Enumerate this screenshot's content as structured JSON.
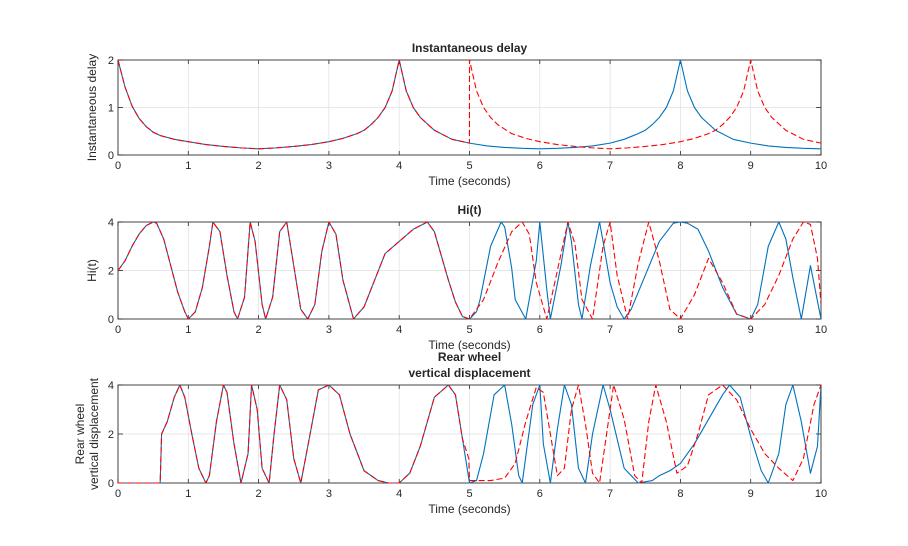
{
  "colors": {
    "blue": "#0072bd",
    "red": "#ff0000",
    "axes": "#262626",
    "grid": "#dfdfdf"
  },
  "chart_data": [
    {
      "type": "line",
      "title": "Instantaneous delay",
      "title_lines": [
        "Instantaneous delay"
      ],
      "xlabel": "Time (seconds)",
      "ylabel": "Instantaneous delay",
      "ylabel_lines": [
        "Instantaneous delay"
      ],
      "xlim": [
        0,
        10
      ],
      "ylim": [
        0,
        2
      ],
      "xticks": [
        "0",
        "1",
        "2",
        "3",
        "4",
        "5",
        "6",
        "7",
        "8",
        "9",
        "10"
      ],
      "yticks": [
        "0",
        "1",
        "2"
      ],
      "grid": true,
      "series": [
        {
          "style": "solid",
          "color": "blue",
          "x": [
            0,
            0.1,
            0.2,
            0.3,
            0.4,
            0.5,
            0.6,
            0.8,
            1,
            1.25,
            1.5,
            1.75,
            2,
            2.25,
            2.5,
            2.75,
            3,
            3.2,
            3.4,
            3.5,
            3.6,
            3.7,
            3.8,
            3.9,
            4,
            4.1,
            4.2,
            4.3,
            4.5,
            4.75,
            5,
            5.25,
            5.5,
            5.75,
            6,
            6.25,
            6.5,
            6.75,
            7,
            7.2,
            7.4,
            7.5,
            7.6,
            7.7,
            7.8,
            7.9,
            8,
            8.1,
            8.2,
            8.3,
            8.5,
            8.75,
            9,
            9.25,
            9.5,
            9.75,
            10
          ],
          "y": [
            2,
            1.43,
            1.03,
            0.77,
            0.6,
            0.48,
            0.41,
            0.33,
            0.28,
            0.22,
            0.18,
            0.15,
            0.13,
            0.15,
            0.18,
            0.22,
            0.28,
            0.35,
            0.45,
            0.52,
            0.64,
            0.79,
            1.0,
            1.35,
            2,
            1.35,
            1.0,
            0.79,
            0.52,
            0.33,
            0.25,
            0.19,
            0.16,
            0.14,
            0.13,
            0.14,
            0.16,
            0.19,
            0.25,
            0.33,
            0.45,
            0.52,
            0.64,
            0.79,
            1.0,
            1.35,
            2,
            1.35,
            1.0,
            0.79,
            0.52,
            0.33,
            0.25,
            0.19,
            0.16,
            0.14,
            0.13
          ]
        },
        {
          "style": "dashed",
          "color": "red",
          "x": [
            0,
            0.1,
            0.2,
            0.3,
            0.4,
            0.5,
            0.6,
            0.8,
            1,
            1.25,
            1.5,
            1.75,
            2,
            2.25,
            2.5,
            2.75,
            3,
            3.2,
            3.4,
            3.5,
            3.6,
            3.7,
            3.8,
            3.9,
            4,
            4.1,
            4.2,
            4.3,
            4.5,
            4.75,
            4.999,
            5,
            5.1,
            5.2,
            5.3,
            5.4,
            5.6,
            5.8,
            6,
            6.25,
            6.5,
            6.75,
            7,
            7.25,
            7.5,
            7.75,
            8,
            8.2,
            8.4,
            8.5,
            8.6,
            8.7,
            8.8,
            8.9,
            9,
            9.1,
            9.2,
            9.3,
            9.5,
            9.75,
            10
          ],
          "y": [
            2,
            1.43,
            1.03,
            0.77,
            0.6,
            0.48,
            0.41,
            0.33,
            0.28,
            0.22,
            0.18,
            0.15,
            0.13,
            0.15,
            0.18,
            0.22,
            0.28,
            0.35,
            0.45,
            0.52,
            0.64,
            0.79,
            1.0,
            1.35,
            2,
            1.35,
            1.0,
            0.79,
            0.52,
            0.33,
            0.25,
            2,
            1.35,
            1.0,
            0.79,
            0.64,
            0.45,
            0.35,
            0.28,
            0.22,
            0.18,
            0.15,
            0.13,
            0.15,
            0.18,
            0.22,
            0.28,
            0.35,
            0.45,
            0.52,
            0.64,
            0.79,
            1.0,
            1.35,
            2,
            1.35,
            1.0,
            0.79,
            0.52,
            0.33,
            0.25
          ]
        }
      ]
    },
    {
      "type": "line",
      "title": "Hi(t)",
      "title_lines": [
        "Hi(t)"
      ],
      "xlabel": "Time (seconds)",
      "ylabel": "Hi(t)",
      "ylabel_lines": [
        "Hi(t)"
      ],
      "xlim": [
        0,
        10
      ],
      "ylim": [
        0,
        4
      ],
      "xticks": [
        "0",
        "1",
        "2",
        "3",
        "4",
        "5",
        "6",
        "7",
        "8",
        "9",
        "10"
      ],
      "yticks": [
        "0",
        "2",
        "4"
      ],
      "grid": true,
      "series": [
        {
          "style": "solid",
          "color": "blue",
          "x": [
            0,
            0.1,
            0.2,
            0.3,
            0.4,
            0.5,
            0.55,
            0.65,
            0.75,
            0.85,
            0.95,
            1.0,
            1.1,
            1.2,
            1.3,
            1.35,
            1.45,
            1.55,
            1.65,
            1.7,
            1.8,
            1.88,
            1.95,
            2.05,
            2.1,
            2.2,
            2.3,
            2.4,
            2.5,
            2.6,
            2.7,
            2.8,
            2.9,
            3.0,
            3.1,
            3.2,
            3.35,
            3.5,
            3.65,
            3.8,
            4.0,
            4.2,
            4.4,
            4.5,
            4.6,
            4.7,
            4.8,
            4.9,
            5.0,
            5.1,
            5.15,
            5.3,
            5.45,
            5.5,
            5.6,
            5.65,
            5.8,
            5.95,
            6.0,
            6.1,
            6.15,
            6.3,
            6.4,
            6.45,
            6.55,
            6.6,
            6.72,
            6.85,
            6.9,
            7.0,
            7.1,
            7.2,
            7.3,
            7.5,
            7.7,
            7.9,
            8.0,
            8.1,
            8.25,
            8.4,
            8.6,
            8.8,
            9.0,
            9.1,
            9.25,
            9.4,
            9.5,
            9.6,
            9.72,
            9.85,
            10
          ],
          "y": [
            2,
            2.4,
            3,
            3.5,
            3.85,
            4,
            3.95,
            3.3,
            2.2,
            1.1,
            0.3,
            0,
            0.3,
            1.3,
            3.0,
            4,
            3.6,
            1.8,
            0.3,
            0,
            0.9,
            4,
            3.2,
            0.6,
            0,
            0.9,
            3.6,
            4,
            2.2,
            0.4,
            0,
            0.6,
            2.8,
            4,
            3.5,
            1.6,
            0,
            0.5,
            1.6,
            2.7,
            3.2,
            3.7,
            4,
            3.6,
            2.6,
            1.6,
            0.7,
            0.1,
            0,
            0.3,
            0.8,
            3.0,
            4,
            3.8,
            2.1,
            0.8,
            0,
            2.4,
            4,
            1.2,
            0,
            2.2,
            4,
            3.2,
            0.6,
            0,
            2.2,
            4,
            3.2,
            1.5,
            0.5,
            0,
            0.4,
            1.8,
            3.2,
            3.95,
            4,
            3.95,
            3.7,
            2.8,
            1.3,
            0.2,
            0,
            0.6,
            3.0,
            4,
            3.3,
            1.7,
            0,
            2.2,
            0
          ]
        },
        {
          "style": "dashed",
          "color": "red",
          "x": [
            0,
            0.1,
            0.2,
            0.3,
            0.4,
            0.5,
            0.55,
            0.65,
            0.75,
            0.85,
            0.95,
            1.0,
            1.1,
            1.2,
            1.3,
            1.35,
            1.45,
            1.55,
            1.65,
            1.7,
            1.8,
            1.88,
            1.95,
            2.05,
            2.1,
            2.2,
            2.3,
            2.4,
            2.5,
            2.6,
            2.7,
            2.8,
            2.9,
            3.0,
            3.1,
            3.2,
            3.35,
            3.5,
            3.65,
            3.8,
            4.0,
            4.2,
            4.4,
            4.5,
            4.6,
            4.7,
            4.8,
            4.9,
            5.0,
            5.2,
            5.4,
            5.6,
            5.75,
            5.85,
            5.95,
            6.1,
            6.25,
            6.4,
            6.5,
            6.6,
            6.75,
            6.9,
            7.0,
            7.1,
            7.25,
            7.4,
            7.55,
            7.7,
            7.85,
            8.0,
            8.2,
            8.4,
            8.6,
            8.8,
            9.0,
            9.2,
            9.4,
            9.6,
            9.75,
            9.85,
            9.95,
            10
          ],
          "y": [
            2,
            2.4,
            3,
            3.5,
            3.85,
            4,
            3.95,
            3.3,
            2.2,
            1.1,
            0.3,
            0,
            0.3,
            1.3,
            3.0,
            4,
            3.6,
            1.8,
            0.3,
            0,
            0.9,
            4,
            3.2,
            0.6,
            0,
            0.9,
            3.6,
            4,
            2.2,
            0.4,
            0,
            0.6,
            2.8,
            4,
            3.5,
            1.6,
            0,
            0.5,
            1.6,
            2.7,
            3.2,
            3.7,
            4,
            3.6,
            2.6,
            1.6,
            0.7,
            0.1,
            0,
            0.8,
            2.3,
            3.6,
            4,
            3.5,
            1.5,
            0,
            2.0,
            4,
            3.1,
            0.8,
            0,
            3.0,
            4,
            1.8,
            0,
            2.3,
            4,
            2.4,
            0.4,
            0,
            1.0,
            2.5,
            1.5,
            0.2,
            0,
            0.6,
            1.8,
            3.3,
            4,
            3.9,
            2.5,
            0.6
          ]
        }
      ]
    },
    {
      "type": "line",
      "title": "Rear wheel vertical displacement",
      "title_lines": [
        "Rear wheel",
        "vertical displacement"
      ],
      "xlabel": "Time (seconds)",
      "ylabel": "Rear wheel vertical displacement",
      "ylabel_lines": [
        "Rear wheel",
        "vertical displacement"
      ],
      "xlim": [
        0,
        10
      ],
      "ylim": [
        0,
        4
      ],
      "xticks": [
        "0",
        "1",
        "2",
        "3",
        "4",
        "5",
        "6",
        "7",
        "8",
        "9",
        "10"
      ],
      "yticks": [
        "0",
        "2",
        "4"
      ],
      "grid": true,
      "series": [
        {
          "style": "solid",
          "color": "blue",
          "x": [
            0,
            0.6,
            0.62,
            0.7,
            0.8,
            0.88,
            0.95,
            1.05,
            1.15,
            1.25,
            1.3,
            1.4,
            1.5,
            1.55,
            1.65,
            1.75,
            1.85,
            1.9,
            1.98,
            2.05,
            2.15,
            2.22,
            2.3,
            2.4,
            2.5,
            2.6,
            2.7,
            2.85,
            3.0,
            3.15,
            3.3,
            3.5,
            3.7,
            3.85,
            4.0,
            4.15,
            4.3,
            4.5,
            4.7,
            4.8,
            4.9,
            5.0,
            5.1,
            5.2,
            5.35,
            5.5,
            5.6,
            5.7,
            5.75,
            5.9,
            6.0,
            6.05,
            6.15,
            6.25,
            6.35,
            6.45,
            6.55,
            6.65,
            6.75,
            6.9,
            7.0,
            7.2,
            7.4,
            7.6,
            7.7,
            7.85,
            8.0,
            8.2,
            8.4,
            8.6,
            8.7,
            8.85,
            9.0,
            9.15,
            9.25,
            9.4,
            9.5,
            9.6,
            9.72,
            9.85,
            9.95,
            10
          ],
          "y": [
            0,
            0,
            2,
            2.5,
            3.5,
            4,
            3.5,
            2,
            0.6,
            0,
            0.3,
            2.5,
            4,
            3.7,
            1.6,
            0,
            1.2,
            4,
            3.0,
            0.6,
            0,
            2.0,
            4,
            3.4,
            1.0,
            0,
            1.5,
            3.8,
            4,
            3.6,
            2.0,
            0.5,
            0.1,
            0,
            0,
            0.4,
            1.5,
            3.5,
            4,
            3.6,
            1.8,
            0,
            0.1,
            1.2,
            3.6,
            4,
            2.4,
            0.3,
            0,
            3.2,
            4,
            1.6,
            0,
            2.2,
            4,
            3.2,
            0.6,
            0,
            2.0,
            4,
            3.0,
            0.6,
            0,
            0.1,
            0.3,
            0.5,
            0.8,
            1.6,
            2.6,
            3.6,
            4,
            3.5,
            1.9,
            0.5,
            0,
            1.2,
            3.2,
            4,
            2.5,
            0.4,
            1.5,
            4
          ]
        },
        {
          "style": "dashed",
          "color": "red",
          "x": [
            0,
            0.6,
            0.62,
            0.7,
            0.8,
            0.88,
            0.95,
            1.05,
            1.15,
            1.25,
            1.3,
            1.4,
            1.5,
            1.55,
            1.65,
            1.75,
            1.85,
            1.9,
            1.98,
            2.05,
            2.15,
            2.22,
            2.3,
            2.4,
            2.5,
            2.6,
            2.7,
            2.85,
            3.0,
            3.15,
            3.3,
            3.5,
            3.7,
            3.85,
            4.0,
            4.15,
            4.3,
            4.5,
            4.7,
            4.8,
            4.9,
            4.99,
            5.0,
            5.3,
            5.5,
            5.65,
            5.8,
            5.95,
            6.05,
            6.15,
            6.25,
            6.35,
            6.45,
            6.55,
            6.65,
            6.75,
            6.85,
            6.95,
            7.05,
            7.2,
            7.35,
            7.45,
            7.55,
            7.65,
            7.8,
            7.95,
            8.1,
            8.25,
            8.4,
            8.6,
            8.8,
            9.0,
            9.2,
            9.4,
            9.6,
            9.75,
            9.9,
            10
          ],
          "y": [
            0,
            0,
            2,
            2.5,
            3.5,
            4,
            3.5,
            2,
            0.6,
            0,
            0.3,
            2.5,
            4,
            3.7,
            1.6,
            0,
            1.2,
            4,
            3.0,
            0.6,
            0,
            2.0,
            4,
            3.4,
            1.0,
            0,
            1.5,
            3.8,
            4,
            3.6,
            2.0,
            0.5,
            0.1,
            0,
            0,
            0.4,
            1.5,
            3.5,
            4,
            3.6,
            1.8,
            1.0,
            0.1,
            0.1,
            0.2,
            0.8,
            2.5,
            3.9,
            3.7,
            2.0,
            0.3,
            0.6,
            3.0,
            4,
            2.4,
            0.4,
            0,
            2.0,
            4,
            2.6,
            0.3,
            0,
            2.5,
            4,
            2.5,
            0.4,
            0.7,
            2.0,
            3.6,
            4,
            3.4,
            2.2,
            1.2,
            0.6,
            0.1,
            1.0,
            3.2,
            4
          ]
        }
      ]
    }
  ]
}
